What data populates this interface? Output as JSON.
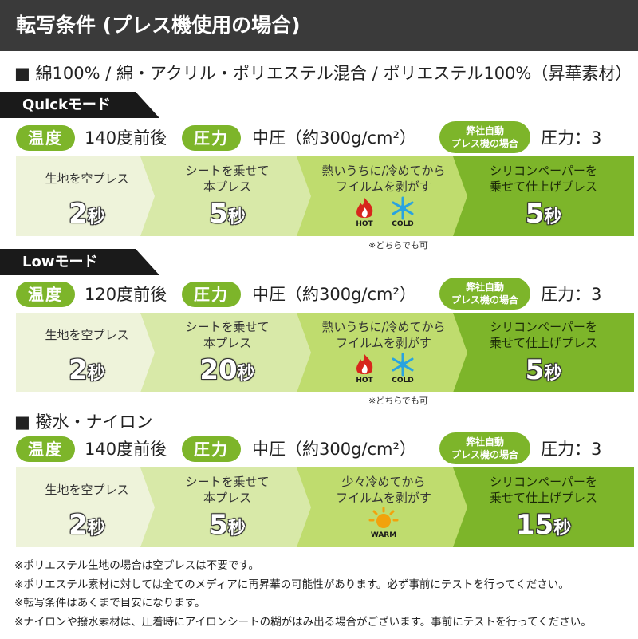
{
  "header": {
    "title": "転写条件 (プレス機使用の場合)"
  },
  "material": {
    "label": "■ 綿100% / 綿・アクリル・ポリエステル混合 / ポリエステル100%（昇華素材）"
  },
  "labels": {
    "temp": "温度",
    "pressure": "圧力",
    "jisha_line1": "弊社自動",
    "jisha_line2": "プレス機の場合",
    "pressure_value": "中圧（約300g/cm²）",
    "machine_pressure": "圧力：3",
    "either_ok": "※どちらでも可",
    "unit": "秒"
  },
  "sections": [
    {
      "mode": "Quickモード",
      "temp_value": "140度前後",
      "steps": [
        {
          "text1": "生地を空プレス",
          "text2": "",
          "seconds": "2"
        },
        {
          "text1": "シートを乗せて",
          "text2": "本プレス",
          "seconds": "5"
        },
        {
          "text1": "熱いうちに/冷めてから",
          "text2": "フイルムを剥がす",
          "icons": [
            "HOT",
            "COLD"
          ]
        },
        {
          "text1": "シリコンペーパーを",
          "text2": "乗せて仕上げプレス",
          "seconds": "5"
        }
      ]
    },
    {
      "mode": "Lowモード",
      "temp_value": "120度前後",
      "steps": [
        {
          "text1": "生地を空プレス",
          "text2": "",
          "seconds": "2"
        },
        {
          "text1": "シートを乗せて",
          "text2": "本プレス",
          "seconds": "20"
        },
        {
          "text1": "熱いうちに/冷めてから",
          "text2": "フイルムを剥がす",
          "icons": [
            "HOT",
            "COLD"
          ]
        },
        {
          "text1": "シリコンペーパーを",
          "text2": "乗せて仕上げプレス",
          "seconds": "5"
        }
      ]
    },
    {
      "title": "■ 撥水・ナイロン",
      "temp_value": "140度前後",
      "steps": [
        {
          "text1": "生地を空プレス",
          "text2": "",
          "seconds": "2"
        },
        {
          "text1": "シートを乗せて",
          "text2": "本プレス",
          "seconds": "5"
        },
        {
          "text1": "少々冷めてから",
          "text2": "フイルムを剥がす",
          "icons": [
            "WARM"
          ]
        },
        {
          "text1": "シリコンペーパーを",
          "text2": "乗せて仕上げプレス",
          "seconds": "15"
        }
      ]
    }
  ],
  "notes": [
    "※ポリエステル生地の場合は空プレスは不要です。",
    "※ポリエステル素材に対しては全てのメディアに再昇華の可能性があります。必ず事前にテストを行ってください。",
    "※転写条件はあくまで目安になります。",
    "※ナイロンや撥水素材は、圧着時にアイロンシートの糊がはみ出る場合がございます。事前にテストを行ってください。"
  ],
  "colors": {
    "accent_green": "#7db52a",
    "header_bg": "#3a3a3a",
    "hot_red": "#d7261c",
    "cold_blue": "#29a3e0",
    "warm_orange": "#f2a20c"
  }
}
